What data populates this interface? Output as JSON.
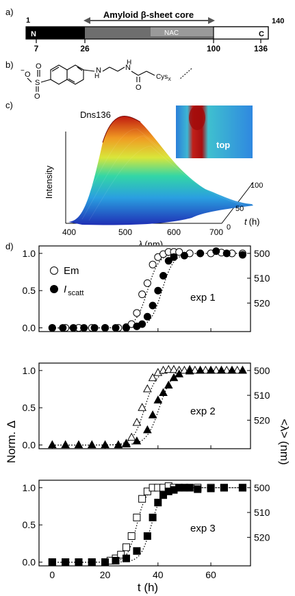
{
  "panels": {
    "a": "a)",
    "b": "b)",
    "c": "c)",
    "d": "d)"
  },
  "domain_bar": {
    "title": "Amyloid β-sheet core",
    "n_label": "N",
    "c_label": "C",
    "nac_label": "NAC",
    "top_numbers": [
      "1",
      "140"
    ],
    "bottom_numbers": [
      "7",
      "26",
      "100",
      "136"
    ],
    "colors": {
      "n_region": "#000000",
      "core_region": "#6e6e6e",
      "nac_region": "#9a9a9a",
      "c_region": "#ffffff"
    }
  },
  "structure": {
    "charge": "−",
    "atoms": [
      "O",
      "S",
      "O",
      "O",
      "H",
      "N",
      "N",
      "H",
      "O"
    ],
    "cys_label": "Cys",
    "cys_sub": "X"
  },
  "surface_plot": {
    "title": "Dns136",
    "zlabel": "Intensity",
    "xlabel_sym": "λ",
    "xlabel_unit": "(nm)",
    "ylabel_sym": "t",
    "ylabel_unit": "(h)",
    "xticks": [
      "400",
      "500",
      "600",
      "700"
    ],
    "yticks": [
      "0",
      "50",
      "100"
    ],
    "inset_label": "top"
  },
  "chart_data": {
    "type": "scatter",
    "shared_xlabel": "t (h)",
    "ylabel_left": "Norm. Δ",
    "ylabel_right_sym": "<λ>",
    "ylabel_right_unit": "(nm)",
    "xlim": [
      -5,
      75
    ],
    "ylim": [
      -0.05,
      1.1
    ],
    "xticks": [
      "0",
      "20",
      "40",
      "60"
    ],
    "xtick_values": [
      0,
      20,
      40,
      60
    ],
    "yticks_left": [
      "0.0",
      "0.5",
      "1.0"
    ],
    "ytick_left_values": [
      0,
      0.5,
      1
    ],
    "yticks_right": [
      "500",
      "510",
      "520"
    ],
    "ytick_right_values": [
      1.0,
      0.667,
      0.333
    ],
    "panels": [
      {
        "label": "exp 1",
        "legend": {
          "em": "Em",
          "scatt_main": "I",
          "scatt_sub": "scatt"
        },
        "marker": "circle",
        "series": [
          {
            "name": "Em",
            "fill": "open",
            "x": [
              0,
              5,
              10,
              15,
              20,
              25,
              28,
              30,
              32,
              34,
              36,
              38,
              40,
              42,
              44,
              46,
              48,
              52,
              56,
              60,
              64,
              68,
              72
            ],
            "y": [
              0,
              0,
              0,
              0,
              0,
              0,
              0.01,
              0.05,
              0.2,
              0.45,
              0.6,
              0.85,
              0.95,
              0.99,
              1.02,
              1.02,
              1.02,
              1.0,
              1.0,
              1.0,
              1.01,
              1.0,
              1.0
            ]
          },
          {
            "name": "I scatt",
            "fill": "filled",
            "x": [
              0,
              4,
              8,
              12,
              16,
              20,
              24,
              28,
              32,
              34,
              36,
              38,
              40,
              42,
              44,
              46,
              50,
              56,
              62,
              66,
              72
            ],
            "y": [
              0,
              0,
              0,
              0,
              0,
              0,
              0,
              0,
              0.02,
              0.05,
              0.15,
              0.3,
              0.5,
              0.7,
              0.9,
              0.95,
              0.97,
              1.0,
              1.03,
              1.0,
              0.98
            ]
          }
        ]
      },
      {
        "label": "exp 2",
        "marker": "triangle",
        "series": [
          {
            "name": "Em",
            "fill": "open",
            "x": [
              28,
              30,
              32,
              34,
              36,
              38,
              40,
              42,
              44,
              46,
              48,
              50,
              52,
              54,
              56,
              58,
              60,
              62,
              64,
              66,
              68,
              70,
              72
            ],
            "y": [
              0.02,
              0.1,
              0.3,
              0.5,
              0.75,
              0.9,
              0.97,
              1.0,
              1.01,
              1.01,
              1.0,
              1.0,
              1.01,
              1.0,
              1.0,
              1.0,
              1.0,
              1.0,
              1.0,
              1.0,
              1.0,
              1.0,
              1.0
            ]
          },
          {
            "name": "I scatt",
            "fill": "filled",
            "x": [
              0,
              5,
              10,
              15,
              20,
              25,
              28,
              32,
              36,
              38,
              40,
              42,
              44,
              46,
              48,
              52,
              56,
              60,
              64,
              68,
              72
            ],
            "y": [
              0,
              0,
              0,
              0,
              0,
              0,
              0.01,
              0.05,
              0.2,
              0.4,
              0.6,
              0.7,
              0.8,
              0.9,
              0.95,
              0.99,
              1.0,
              1.0,
              1.0,
              1.0,
              1.0
            ]
          }
        ]
      },
      {
        "label": "exp 3",
        "marker": "square",
        "series": [
          {
            "name": "Em",
            "fill": "open",
            "x": [
              0,
              5,
              10,
              15,
              20,
              22,
              24,
              26,
              28,
              30,
              32,
              34,
              36,
              38,
              40,
              42,
              44,
              46,
              48,
              50,
              52,
              55,
              60,
              65,
              72
            ],
            "y": [
              0,
              0,
              0,
              0,
              0,
              0.02,
              0.05,
              0.1,
              0.2,
              0.35,
              0.6,
              0.85,
              0.95,
              1.0,
              1.0,
              1.0,
              1.02,
              1.0,
              1.0,
              1.0,
              1.0,
              1.0,
              1.0,
              1.0,
              1.0
            ]
          },
          {
            "name": "I scatt",
            "fill": "filled",
            "x": [
              0,
              5,
              10,
              15,
              20,
              24,
              28,
              32,
              36,
              38,
              40,
              42,
              44,
              46,
              48,
              50,
              52,
              55,
              60,
              65,
              72
            ],
            "y": [
              0,
              0,
              0,
              0,
              0,
              0.02,
              0.05,
              0.15,
              0.35,
              0.6,
              0.8,
              0.9,
              0.95,
              0.97,
              1.0,
              1.0,
              1.0,
              0.98,
              0.99,
              1.0,
              1.0
            ]
          }
        ]
      }
    ]
  }
}
